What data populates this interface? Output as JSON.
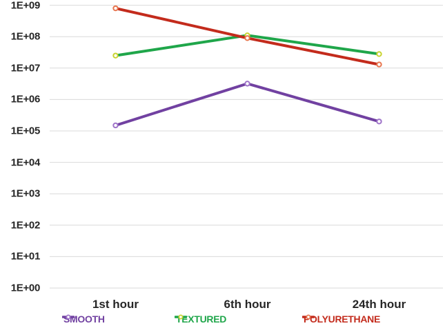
{
  "chart_data": {
    "type": "line",
    "title": "",
    "xlabel": "",
    "ylabel": "",
    "categories": [
      "1st hour",
      "6th hour",
      "24th hour"
    ],
    "series": [
      {
        "name": "SMOOTH",
        "values": [
          150000,
          3200000,
          200000
        ],
        "color": "#7141A1",
        "marker_ring": "#9F74C9"
      },
      {
        "name": "TEXTURED",
        "values": [
          25000000,
          110000000,
          28000000
        ],
        "color": "#1FA64A",
        "marker_ring": "#C9D431"
      },
      {
        "name": "POLYURETHANE",
        "values": [
          800000000,
          90000000,
          13000000
        ],
        "color": "#C32B1C",
        "marker_ring": "#E8764F"
      }
    ],
    "y_axis": {
      "scale": "log",
      "min": 1,
      "max": 1000000000,
      "tick_labels": [
        "1E+09",
        "1E+08",
        "1E+07",
        "1E+06",
        "1E+05",
        "1E+04",
        "1E+03",
        "1E+02",
        "1E+01",
        "1E+00"
      ]
    },
    "grid": true,
    "legend_position": "bottom"
  },
  "colors": {
    "background": "#FFFFFF",
    "gridline": "#D9D9D9",
    "axis_text": "#262626",
    "marker_fill": "#FFFFFF"
  }
}
